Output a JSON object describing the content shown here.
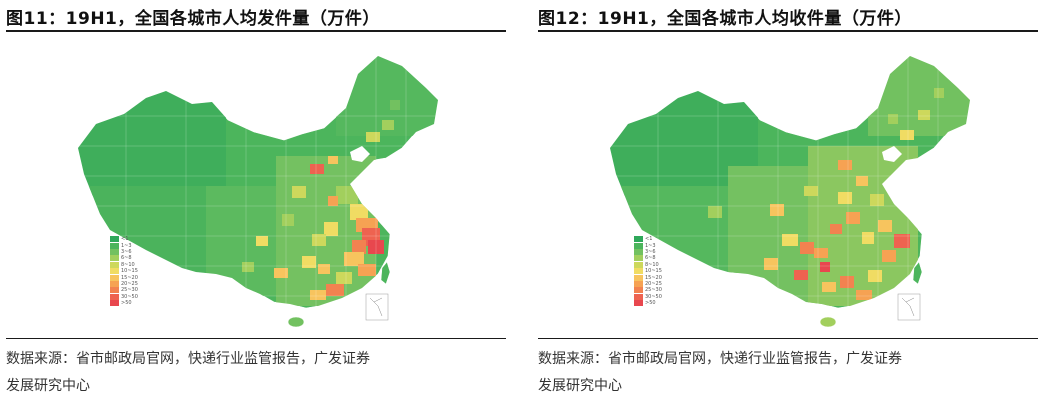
{
  "figures": [
    {
      "title": "图11：19H1，全国各城市人均发件量（万件）",
      "source_line1": "数据来源：省市邮政局官网，快递行业监管报告，广发证券",
      "source_line2": "发展研究中心",
      "legend": [
        {
          "label": "<1",
          "color": "#2fa85a"
        },
        {
          "label": "1~3",
          "color": "#4cb55c"
        },
        {
          "label": "3~6",
          "color": "#72c160"
        },
        {
          "label": "6~8",
          "color": "#a2cf5d"
        },
        {
          "label": "8~10",
          "color": "#cdd85c"
        },
        {
          "label": "10~15",
          "color": "#f0dc63"
        },
        {
          "label": "15~20",
          "color": "#f7c45e"
        },
        {
          "label": "20~25",
          "color": "#f6a253"
        },
        {
          "label": "25~30",
          "color": "#f28250"
        },
        {
          "label": "30~50",
          "color": "#ee6350"
        },
        {
          "label": ">50",
          "color": "#e8474e"
        }
      ]
    },
    {
      "title": "图12：19H1，全国各城市人均收件量（万件）",
      "source_line1": "数据来源：省市邮政局官网，快递行业监管报告，广发证券",
      "source_line2": "发展研究中心",
      "legend": [
        {
          "label": "<1",
          "color": "#2fa85a"
        },
        {
          "label": "1~3",
          "color": "#4cb55c"
        },
        {
          "label": "3~6",
          "color": "#72c160"
        },
        {
          "label": "6~8",
          "color": "#a2cf5d"
        },
        {
          "label": "8~10",
          "color": "#cdd85c"
        },
        {
          "label": "10~15",
          "color": "#f0dc63"
        },
        {
          "label": "15~20",
          "color": "#f7c45e"
        },
        {
          "label": "20~25",
          "color": "#f6a253"
        },
        {
          "label": "25~30",
          "color": "#f28250"
        },
        {
          "label": "30~50",
          "color": "#ee6350"
        },
        {
          "label": ">50",
          "color": "#e8474e"
        }
      ]
    }
  ]
}
